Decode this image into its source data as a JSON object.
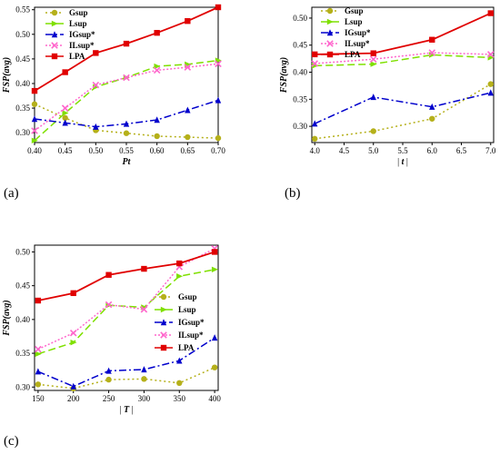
{
  "chart_data": [
    {
      "type": "line",
      "panel_label": "(a)",
      "xlabel": "Pt",
      "ylabel": "FSP(avg)",
      "x": [
        0.4,
        0.45,
        0.5,
        0.55,
        0.6,
        0.65,
        0.7
      ],
      "xticks": [
        "0.40",
        "0.45",
        "0.50",
        "0.55",
        "0.60",
        "0.65",
        "0.70"
      ],
      "xlim": [
        0.4,
        0.7
      ],
      "ylim": [
        0.28,
        0.555
      ],
      "yticks": [
        "0.30",
        "0.35",
        "0.40",
        "0.45",
        "0.50",
        "0.55"
      ],
      "legend_position": "top-left",
      "series": [
        {
          "name": "Gsup",
          "color": "#b5b01a",
          "marker": "circle",
          "dash": "2,3",
          "values": [
            0.358,
            0.33,
            0.305,
            0.299,
            0.293,
            0.291,
            0.289
          ]
        },
        {
          "name": "Lsup",
          "color": "#7fe000",
          "marker": "triangle-right",
          "dash": "8,4",
          "values": [
            0.284,
            0.34,
            0.393,
            0.412,
            0.435,
            0.439,
            0.447
          ]
        },
        {
          "name": "IGsup*",
          "color": "#0000cc",
          "marker": "triangle-up",
          "dash": "8,3,2,3",
          "values": [
            0.328,
            0.32,
            0.312,
            0.318,
            0.326,
            0.346,
            0.366
          ]
        },
        {
          "name": "ILsup*",
          "color": "#ff66cc",
          "marker": "x",
          "dash": "2,2",
          "values": [
            0.304,
            0.35,
            0.397,
            0.412,
            0.427,
            0.433,
            0.44
          ]
        },
        {
          "name": "LPA",
          "color": "#e00000",
          "marker": "square",
          "dash": "",
          "values": [
            0.385,
            0.423,
            0.462,
            0.481,
            0.503,
            0.527,
            0.555
          ]
        }
      ]
    },
    {
      "type": "line",
      "panel_label": "(b)",
      "xlabel": "|t|",
      "ylabel": "FSP(avg)",
      "x": [
        4.0,
        5.0,
        6.0,
        7.0
      ],
      "xticks": [
        "4.0",
        "4.5",
        "5.0",
        "5.5",
        "6.0",
        "6.5",
        "7.0"
      ],
      "xlim": [
        3.95,
        7.05
      ],
      "ylim": [
        0.27,
        0.52
      ],
      "yticks": [
        "0.30",
        "0.35",
        "0.40",
        "0.45",
        "0.50"
      ],
      "legend_position": "top-left",
      "series": [
        {
          "name": "Gsup",
          "color": "#b5b01a",
          "marker": "circle",
          "dash": "2,3",
          "values": [
            0.277,
            0.291,
            0.314,
            0.378
          ]
        },
        {
          "name": "Lsup",
          "color": "#7fe000",
          "marker": "triangle-right",
          "dash": "8,4",
          "values": [
            0.412,
            0.415,
            0.432,
            0.427
          ]
        },
        {
          "name": "IGsup*",
          "color": "#0000cc",
          "marker": "triangle-up",
          "dash": "8,3,2,3",
          "values": [
            0.305,
            0.354,
            0.336,
            0.362
          ]
        },
        {
          "name": "ILsup*",
          "color": "#ff66cc",
          "marker": "x",
          "dash": "2,2",
          "values": [
            0.416,
            0.424,
            0.436,
            0.433
          ]
        },
        {
          "name": "LPA",
          "color": "#e00000",
          "marker": "square",
          "dash": "",
          "values": [
            0.433,
            0.435,
            0.46,
            0.509
          ]
        }
      ]
    },
    {
      "type": "line",
      "panel_label": "(c)",
      "xlabel": "|T|",
      "ylabel": "FSP(avg)",
      "x": [
        150,
        200,
        250,
        300,
        350,
        400
      ],
      "xticks": [
        "150",
        "200",
        "250",
        "300",
        "350",
        "400"
      ],
      "xlim": [
        145,
        405
      ],
      "ylim": [
        0.295,
        0.51
      ],
      "yticks": [
        "0.30",
        "0.35",
        "0.40",
        "0.45",
        "0.50"
      ],
      "legend_position": "center-right",
      "series": [
        {
          "name": "Gsup",
          "color": "#b5b01a",
          "marker": "circle",
          "dash": "2,3",
          "values": [
            0.304,
            0.298,
            0.311,
            0.312,
            0.306,
            0.329
          ]
        },
        {
          "name": "Lsup",
          "color": "#7fe000",
          "marker": "triangle-right",
          "dash": "8,4",
          "values": [
            0.349,
            0.366,
            0.421,
            0.418,
            0.464,
            0.474
          ]
        },
        {
          "name": "IGsup*",
          "color": "#0000cc",
          "marker": "triangle-up",
          "dash": "8,3,2,3",
          "values": [
            0.323,
            0.301,
            0.324,
            0.326,
            0.339,
            0.373
          ]
        },
        {
          "name": "ILsup*",
          "color": "#ff66cc",
          "marker": "x",
          "dash": "2,2",
          "values": [
            0.356,
            0.38,
            0.422,
            0.415,
            0.478,
            0.505
          ]
        },
        {
          "name": "LPA",
          "color": "#e00000",
          "marker": "square",
          "dash": "",
          "values": [
            0.428,
            0.439,
            0.466,
            0.475,
            0.483,
            0.5
          ]
        }
      ]
    }
  ]
}
